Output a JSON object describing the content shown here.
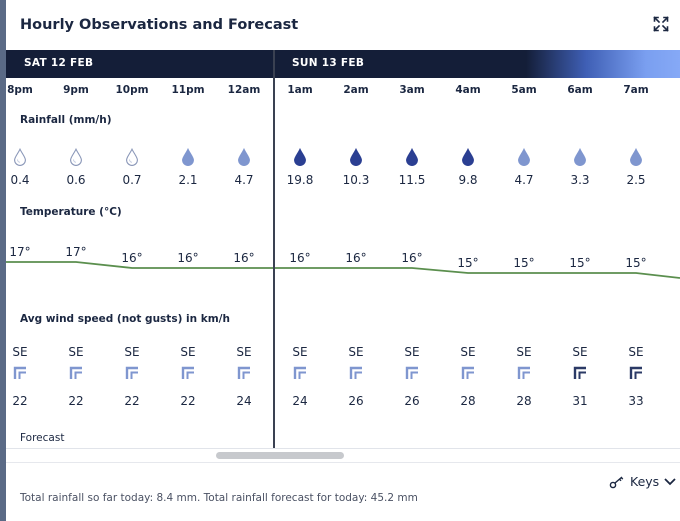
{
  "title": "Hourly Observations and Forecast",
  "icons": {
    "expand": "expand-icon",
    "keys": "key-icon",
    "chevron": "chevron-down-icon"
  },
  "days": [
    "SAT 12 FEB",
    "SUN 13 FEB"
  ],
  "hours": [
    "8pm",
    "9pm",
    "10pm",
    "11pm",
    "12am",
    "1am",
    "2am",
    "3am",
    "4am",
    "5am",
    "6am",
    "7am"
  ],
  "rainfall": {
    "label": "Rainfall (mm/h)",
    "values": [
      "0.4",
      "0.6",
      "0.7",
      "2.1",
      "4.7",
      "19.8",
      "10.3",
      "11.5",
      "9.8",
      "4.7",
      "3.3",
      "2.5"
    ],
    "colors": [
      "#ffffff",
      "#ffffff",
      "#ffffff",
      "#7f96cf",
      "#7f96cf",
      "#2b3f92",
      "#2b3f92",
      "#2b3f92",
      "#2b3f92",
      "#7f96cf",
      "#7f96cf",
      "#7f96cf"
    ]
  },
  "temperature": {
    "label": "Temperature (°C)",
    "values": [
      "17°",
      "17°",
      "16°",
      "16°",
      "16°",
      "16°",
      "16°",
      "16°",
      "15°",
      "15°",
      "15°",
      "15°"
    ],
    "line_color": "#5b8f4e"
  },
  "wind": {
    "label": "Avg wind speed (not gusts) in km/h",
    "directions": [
      "SE",
      "SE",
      "SE",
      "SE",
      "SE",
      "SE",
      "SE",
      "SE",
      "SE",
      "SE",
      "SE",
      "SE"
    ],
    "speeds": [
      "22",
      "22",
      "22",
      "22",
      "24",
      "24",
      "26",
      "26",
      "28",
      "28",
      "31",
      "33"
    ],
    "icon_colors": [
      "#7f96cf",
      "#7f96cf",
      "#7f96cf",
      "#7f96cf",
      "#7f96cf",
      "#7f96cf",
      "#7f96cf",
      "#7f96cf",
      "#7f96cf",
      "#7f96cf",
      "#2b3a66",
      "#2b3a66"
    ]
  },
  "forecast_label": "Forecast",
  "keys_label": "Keys",
  "totals": "Total rainfall so far today: 8.4 mm. Total rainfall forecast for today: 45.2 mm"
}
